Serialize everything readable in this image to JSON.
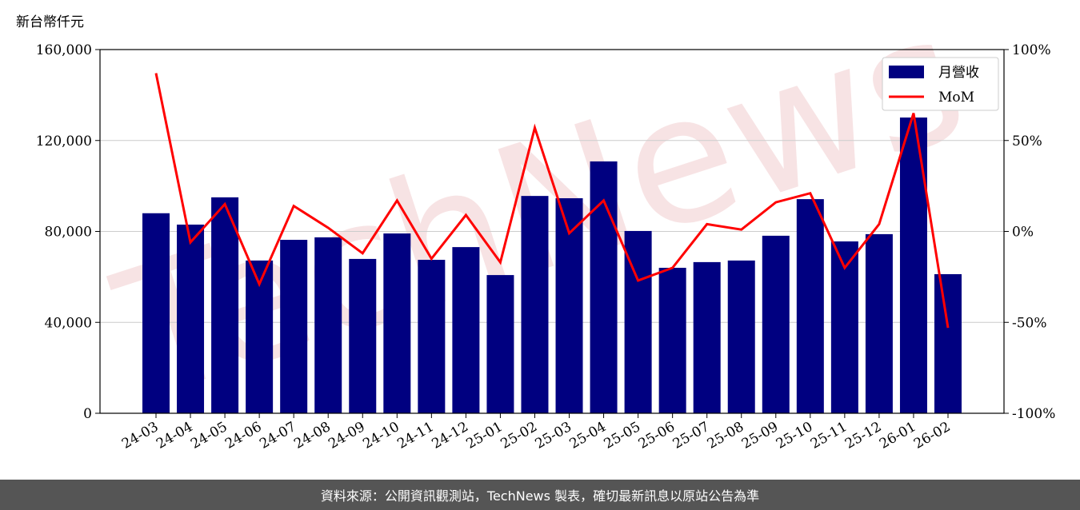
{
  "chart_data": {
    "type": "bar-line",
    "y_label": "新台幣仟元",
    "watermark": "TechNews",
    "footer": "資料來源：公開資訊觀測站，TechNews 製表，確切最新訊息以原站公告為準",
    "categories": [
      "24-03",
      "24-04",
      "24-05",
      "24-06",
      "24-07",
      "24-08",
      "24-09",
      "24-10",
      "24-11",
      "24-12",
      "25-01",
      "25-02",
      "25-03",
      "25-04",
      "25-05",
      "25-06",
      "25-07",
      "25-08",
      "25-09",
      "25-10",
      "25-11",
      "25-12",
      "26-01",
      "26-02"
    ],
    "series": [
      {
        "name": "月營收",
        "color": "#000080",
        "type": "bar",
        "values": [
          88000,
          83000,
          95000,
          67200,
          76300,
          77400,
          67900,
          79100,
          67500,
          73100,
          60800,
          95600,
          94600,
          110800,
          80200,
          64000,
          66500,
          67200,
          78100,
          94200,
          75600,
          78800,
          130100,
          61200
        ]
      },
      {
        "name": "MoM",
        "color": "#ff0000",
        "type": "line",
        "axis": "y2",
        "values": [
          87,
          -6,
          15,
          -29,
          14,
          2,
          -12,
          17,
          -15,
          9,
          -17,
          57,
          -1,
          17,
          -27,
          -20,
          4,
          1,
          16,
          21,
          -20,
          4,
          65,
          -53
        ]
      }
    ],
    "ylim": [
      0,
      160000
    ],
    "yticks": [
      0,
      {
        "value": 40000,
        "label": "40,000"
      },
      {
        "value": 80000,
        "label": "80,000"
      },
      {
        "value": 120000,
        "label": "120,000"
      },
      {
        "value": 160000,
        "label": "160,000"
      }
    ],
    "y2lim": [
      -100,
      100
    ],
    "y2ticks": [
      {
        "value": -100,
        "label": "-100%"
      },
      {
        "value": -50,
        "label": "-50%"
      },
      {
        "value": 0,
        "label": "0%"
      },
      {
        "value": 50,
        "label": "50%"
      },
      {
        "value": 100,
        "label": "100%"
      }
    ],
    "grid": true,
    "legend": "upper-right"
  }
}
